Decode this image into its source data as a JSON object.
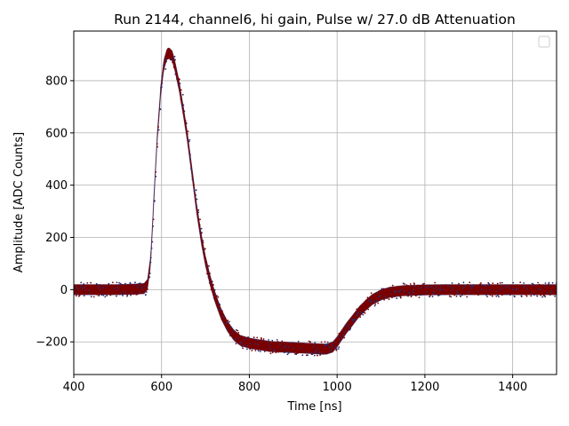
{
  "chart_data": {
    "type": "scatter",
    "title": "Run 2144, channel6, hi gain, Pulse w/ 27.0 dB Attenuation",
    "xlabel": "Time [ns]",
    "ylabel": "Amplitude [ADC Counts]",
    "xlim": [
      400,
      1500
    ],
    "ylim": [
      -325,
      990
    ],
    "xticks": [
      400,
      600,
      800,
      1000,
      1200,
      1400
    ],
    "yticks": [
      -200,
      0,
      200,
      400,
      600,
      800
    ],
    "ytick_labels": [
      "−200",
      "0",
      "200",
      "400",
      "600",
      "800"
    ],
    "grid": true,
    "legend": {
      "placement": "top-right",
      "entries": []
    },
    "series": [
      {
        "color": "#7a0000",
        "edge_color": "#2b2b6b",
        "x": [
          400,
          450,
          500,
          540,
          560,
          568,
          575,
          582,
          590,
          598,
          605,
          612,
          618,
          624,
          630,
          640,
          650,
          660,
          670,
          680,
          690,
          700,
          710,
          720,
          735,
          750,
          765,
          780,
          800,
          825,
          850,
          875,
          900,
          925,
          950,
          975,
          990,
          1000,
          1010,
          1020,
          1035,
          1050,
          1065,
          1080,
          1100,
          1120,
          1150,
          1200,
          1250,
          1300,
          1400,
          1500
        ],
        "y": [
          0,
          0,
          0,
          2,
          4,
          20,
          110,
          330,
          580,
          760,
          860,
          900,
          905,
          895,
          860,
          780,
          680,
          570,
          440,
          310,
          200,
          110,
          40,
          -20,
          -90,
          -140,
          -175,
          -195,
          -205,
          -212,
          -218,
          -220,
          -222,
          -224,
          -226,
          -228,
          -220,
          -200,
          -175,
          -150,
          -118,
          -85,
          -60,
          -38,
          -20,
          -10,
          -4,
          -1,
          0,
          0,
          0,
          0
        ],
        "band_half_width": 20
      }
    ]
  }
}
